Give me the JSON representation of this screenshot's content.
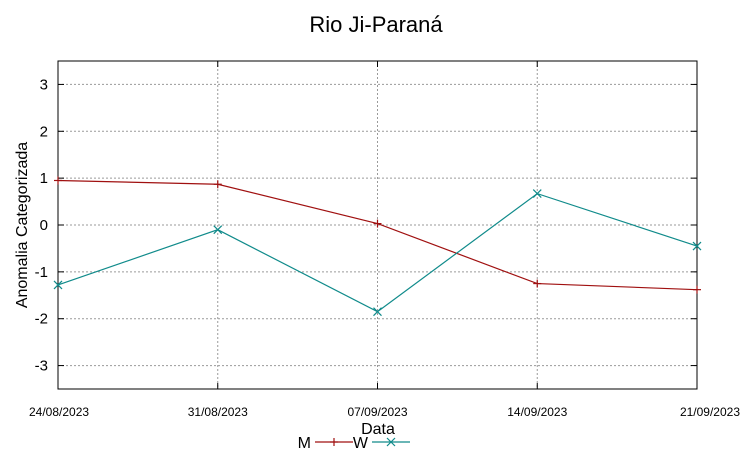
{
  "chart_data": {
    "type": "line",
    "title": "Rio Ji-Paraná",
    "xlabel": "Data",
    "ylabel": "Anomalia Categorizada",
    "categories": [
      "24/08/2023",
      "31/08/2023",
      "07/09/2023",
      "14/09/2023",
      "21/09/2023"
    ],
    "ylim": [
      -3.5,
      3.5
    ],
    "yticks": [
      -3,
      -2,
      -1,
      0,
      1,
      2,
      3
    ],
    "grid": true,
    "legend_position": "bottom-center",
    "series": [
      {
        "name": "M",
        "color": "#a01010",
        "marker": "plus",
        "values": [
          0.95,
          0.87,
          0.03,
          -1.25,
          -1.38
        ]
      },
      {
        "name": "W",
        "color": "#108b8b",
        "marker": "cross",
        "values": [
          -1.28,
          -0.1,
          -1.85,
          0.67,
          -0.45
        ]
      }
    ]
  }
}
